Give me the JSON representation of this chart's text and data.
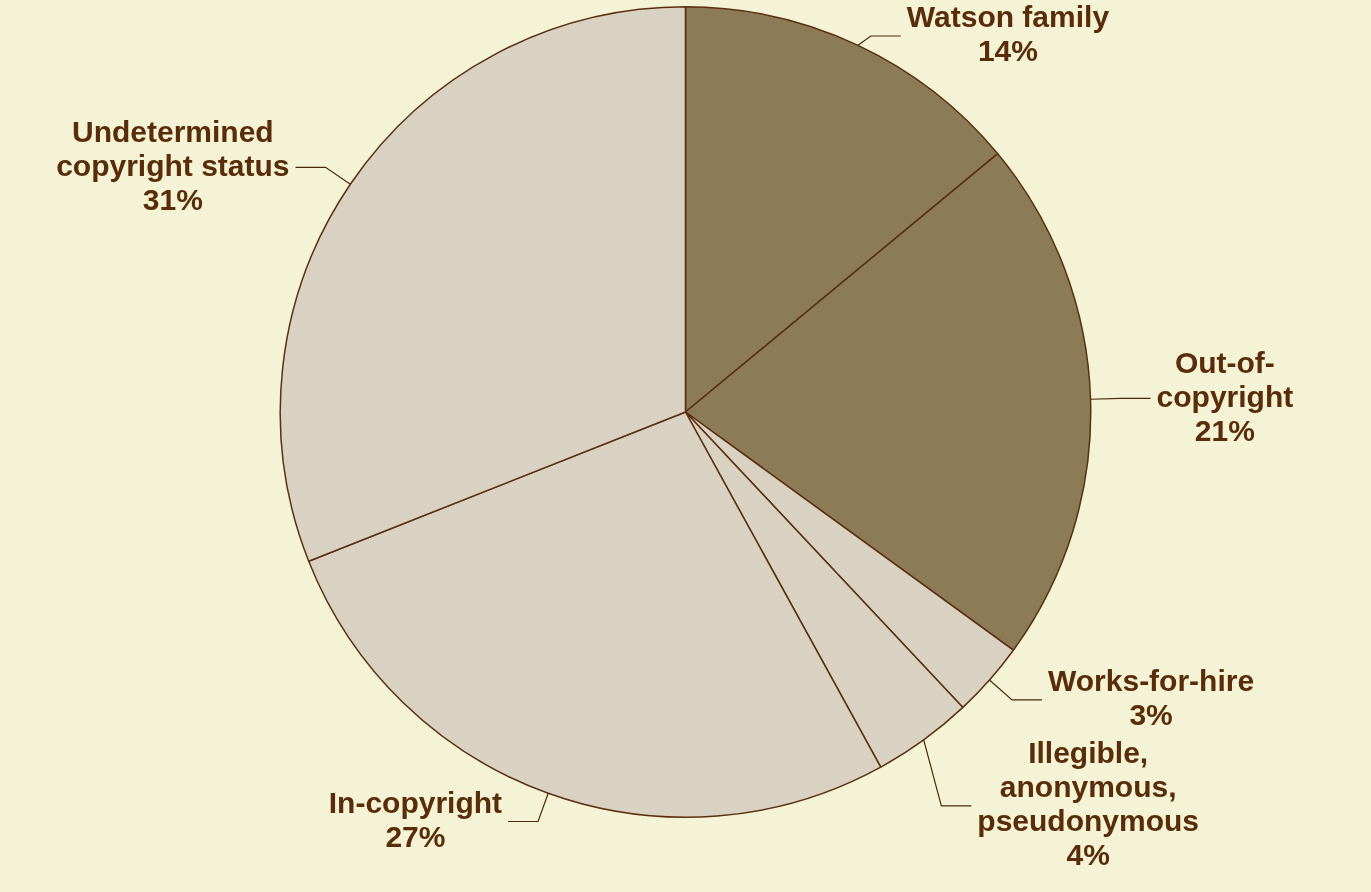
{
  "chart_data": {
    "type": "pie",
    "categories": [
      "Watson family",
      "Out-of-copyright",
      "Works-for-hire",
      "Illegible, anonymous, pseudonymous",
      "In-copyright",
      "Undetermined copyright status"
    ],
    "values": [
      14,
      21,
      3,
      4,
      27,
      31
    ],
    "value_labels": [
      "14%",
      "21%",
      "3%",
      "4%",
      "27%",
      "31%"
    ],
    "colors": [
      "#8b7b57",
      "#8b7b57",
      "#d9d1c2",
      "#d9d1c2",
      "#d9d1c2",
      "#d9d1c2"
    ]
  }
}
